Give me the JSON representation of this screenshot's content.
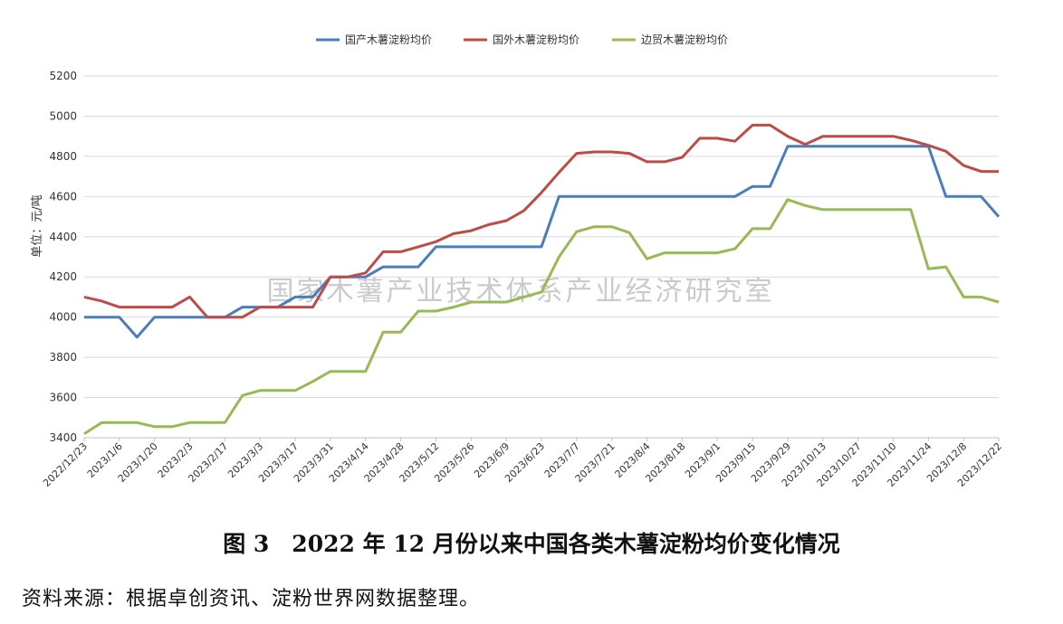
{
  "chart_data": {
    "type": "line",
    "ylabel": "单位：元/吨",
    "ylim": [
      3400,
      5200
    ],
    "yticks": [
      3400,
      3600,
      3800,
      4000,
      4200,
      4400,
      4600,
      4800,
      5000,
      5200
    ],
    "grid": true,
    "legend": "top-center",
    "watermark": "国家木薯产业技术体系产业经济研究室",
    "x": [
      "2022/12/23",
      "2022/12/30",
      "2023/1/6",
      "2023/1/13",
      "2023/1/20",
      "2023/1/27",
      "2023/2/3",
      "2023/2/10",
      "2023/2/17",
      "2023/2/24",
      "2023/3/3",
      "2023/3/10",
      "2023/3/17",
      "2023/3/24",
      "2023/3/31",
      "2023/4/7",
      "2023/4/14",
      "2023/4/21",
      "2023/4/28",
      "2023/5/5",
      "2023/5/12",
      "2023/5/19",
      "2023/5/26",
      "2023/6/2",
      "2023/6/9",
      "2023/6/16",
      "2023/6/23",
      "2023/6/30",
      "2023/7/7",
      "2023/7/14",
      "2023/7/21",
      "2023/7/28",
      "2023/8/4",
      "2023/8/11",
      "2023/8/18",
      "2023/8/25",
      "2023/9/1",
      "2023/9/8",
      "2023/9/15",
      "2023/9/22",
      "2023/9/29",
      "2023/10/6",
      "2023/10/13",
      "2023/10/20",
      "2023/10/27",
      "2023/11/3",
      "2023/11/10",
      "2023/11/17",
      "2023/11/24",
      "2023/12/1",
      "2023/12/8",
      "2023/12/15",
      "2023/12/22"
    ],
    "xtick_labels": [
      "2022/12/23",
      "2023/1/6",
      "2023/1/20",
      "2023/2/3",
      "2023/2/17",
      "2023/3/3",
      "2023/3/17",
      "2023/3/31",
      "2023/4/14",
      "2023/4/28",
      "2023/5/12",
      "2023/5/26",
      "2023/6/9",
      "2023/6/23",
      "2023/7/7",
      "2023/7/21",
      "2023/8/4",
      "2023/8/18",
      "2023/9/1",
      "2023/9/15",
      "2023/9/29",
      "2023/10/13",
      "2023/10/27",
      "2023/11/10",
      "2023/11/24",
      "2023/12/8",
      "2023/12/22"
    ],
    "series": [
      {
        "name": "国产木薯淀粉均价",
        "color": "#4a7ebb",
        "values": [
          4000,
          4000,
          4000,
          3900,
          4000,
          4000,
          4000,
          4000,
          4000,
          4050,
          4050,
          4050,
          4100,
          4100,
          4200,
          4200,
          4200,
          4250,
          4250,
          4250,
          4350,
          4350,
          4350,
          4350,
          4350,
          4350,
          4350,
          4600,
          4600,
          4600,
          4600,
          4600,
          4600,
          4600,
          4600,
          4600,
          4600,
          4600,
          4650,
          4650,
          4850,
          4850,
          4850,
          4850,
          4850,
          4850,
          4850,
          4850,
          4850,
          4600,
          4600,
          4600,
          4500
        ]
      },
      {
        "name": "国外木薯淀粉均价",
        "color": "#be4b48",
        "values": [
          4100,
          4080,
          4050,
          4050,
          4050,
          4050,
          4100,
          4000,
          4000,
          4000,
          4050,
          4050,
          4050,
          4050,
          4200,
          4200,
          4220,
          4325,
          4325,
          4350,
          4375,
          4415,
          4430,
          4460,
          4480,
          4530,
          4620,
          4720,
          4815,
          4822,
          4822,
          4815,
          4773,
          4773,
          4795,
          4890,
          4890,
          4875,
          4955,
          4955,
          4900,
          4860,
          4900,
          4900,
          4900,
          4900,
          4900,
          4880,
          4855,
          4825,
          4755,
          4725,
          4725
        ]
      },
      {
        "name": "边贸木薯淀粉均价",
        "color": "#98b954",
        "values": [
          3420,
          3475,
          3475,
          3475,
          3455,
          3455,
          3475,
          3475,
          3475,
          3610,
          3635,
          3635,
          3635,
          3680,
          3730,
          3730,
          3730,
          3925,
          3925,
          4030,
          4030,
          4050,
          4075,
          4075,
          4075,
          4100,
          4125,
          4300,
          4425,
          4450,
          4450,
          4420,
          4290,
          4320,
          4320,
          4320,
          4320,
          4340,
          4440,
          4440,
          4585,
          4555,
          4535,
          4535,
          4535,
          4535,
          4535,
          4535,
          4240,
          4250,
          4100,
          4100,
          4075
        ]
      }
    ]
  },
  "caption": "图 3　2022 年 12 月份以来中国各类木薯淀粉均价变化情况",
  "source": "资料来源：根据卓创资讯、淀粉世界网数据整理。"
}
